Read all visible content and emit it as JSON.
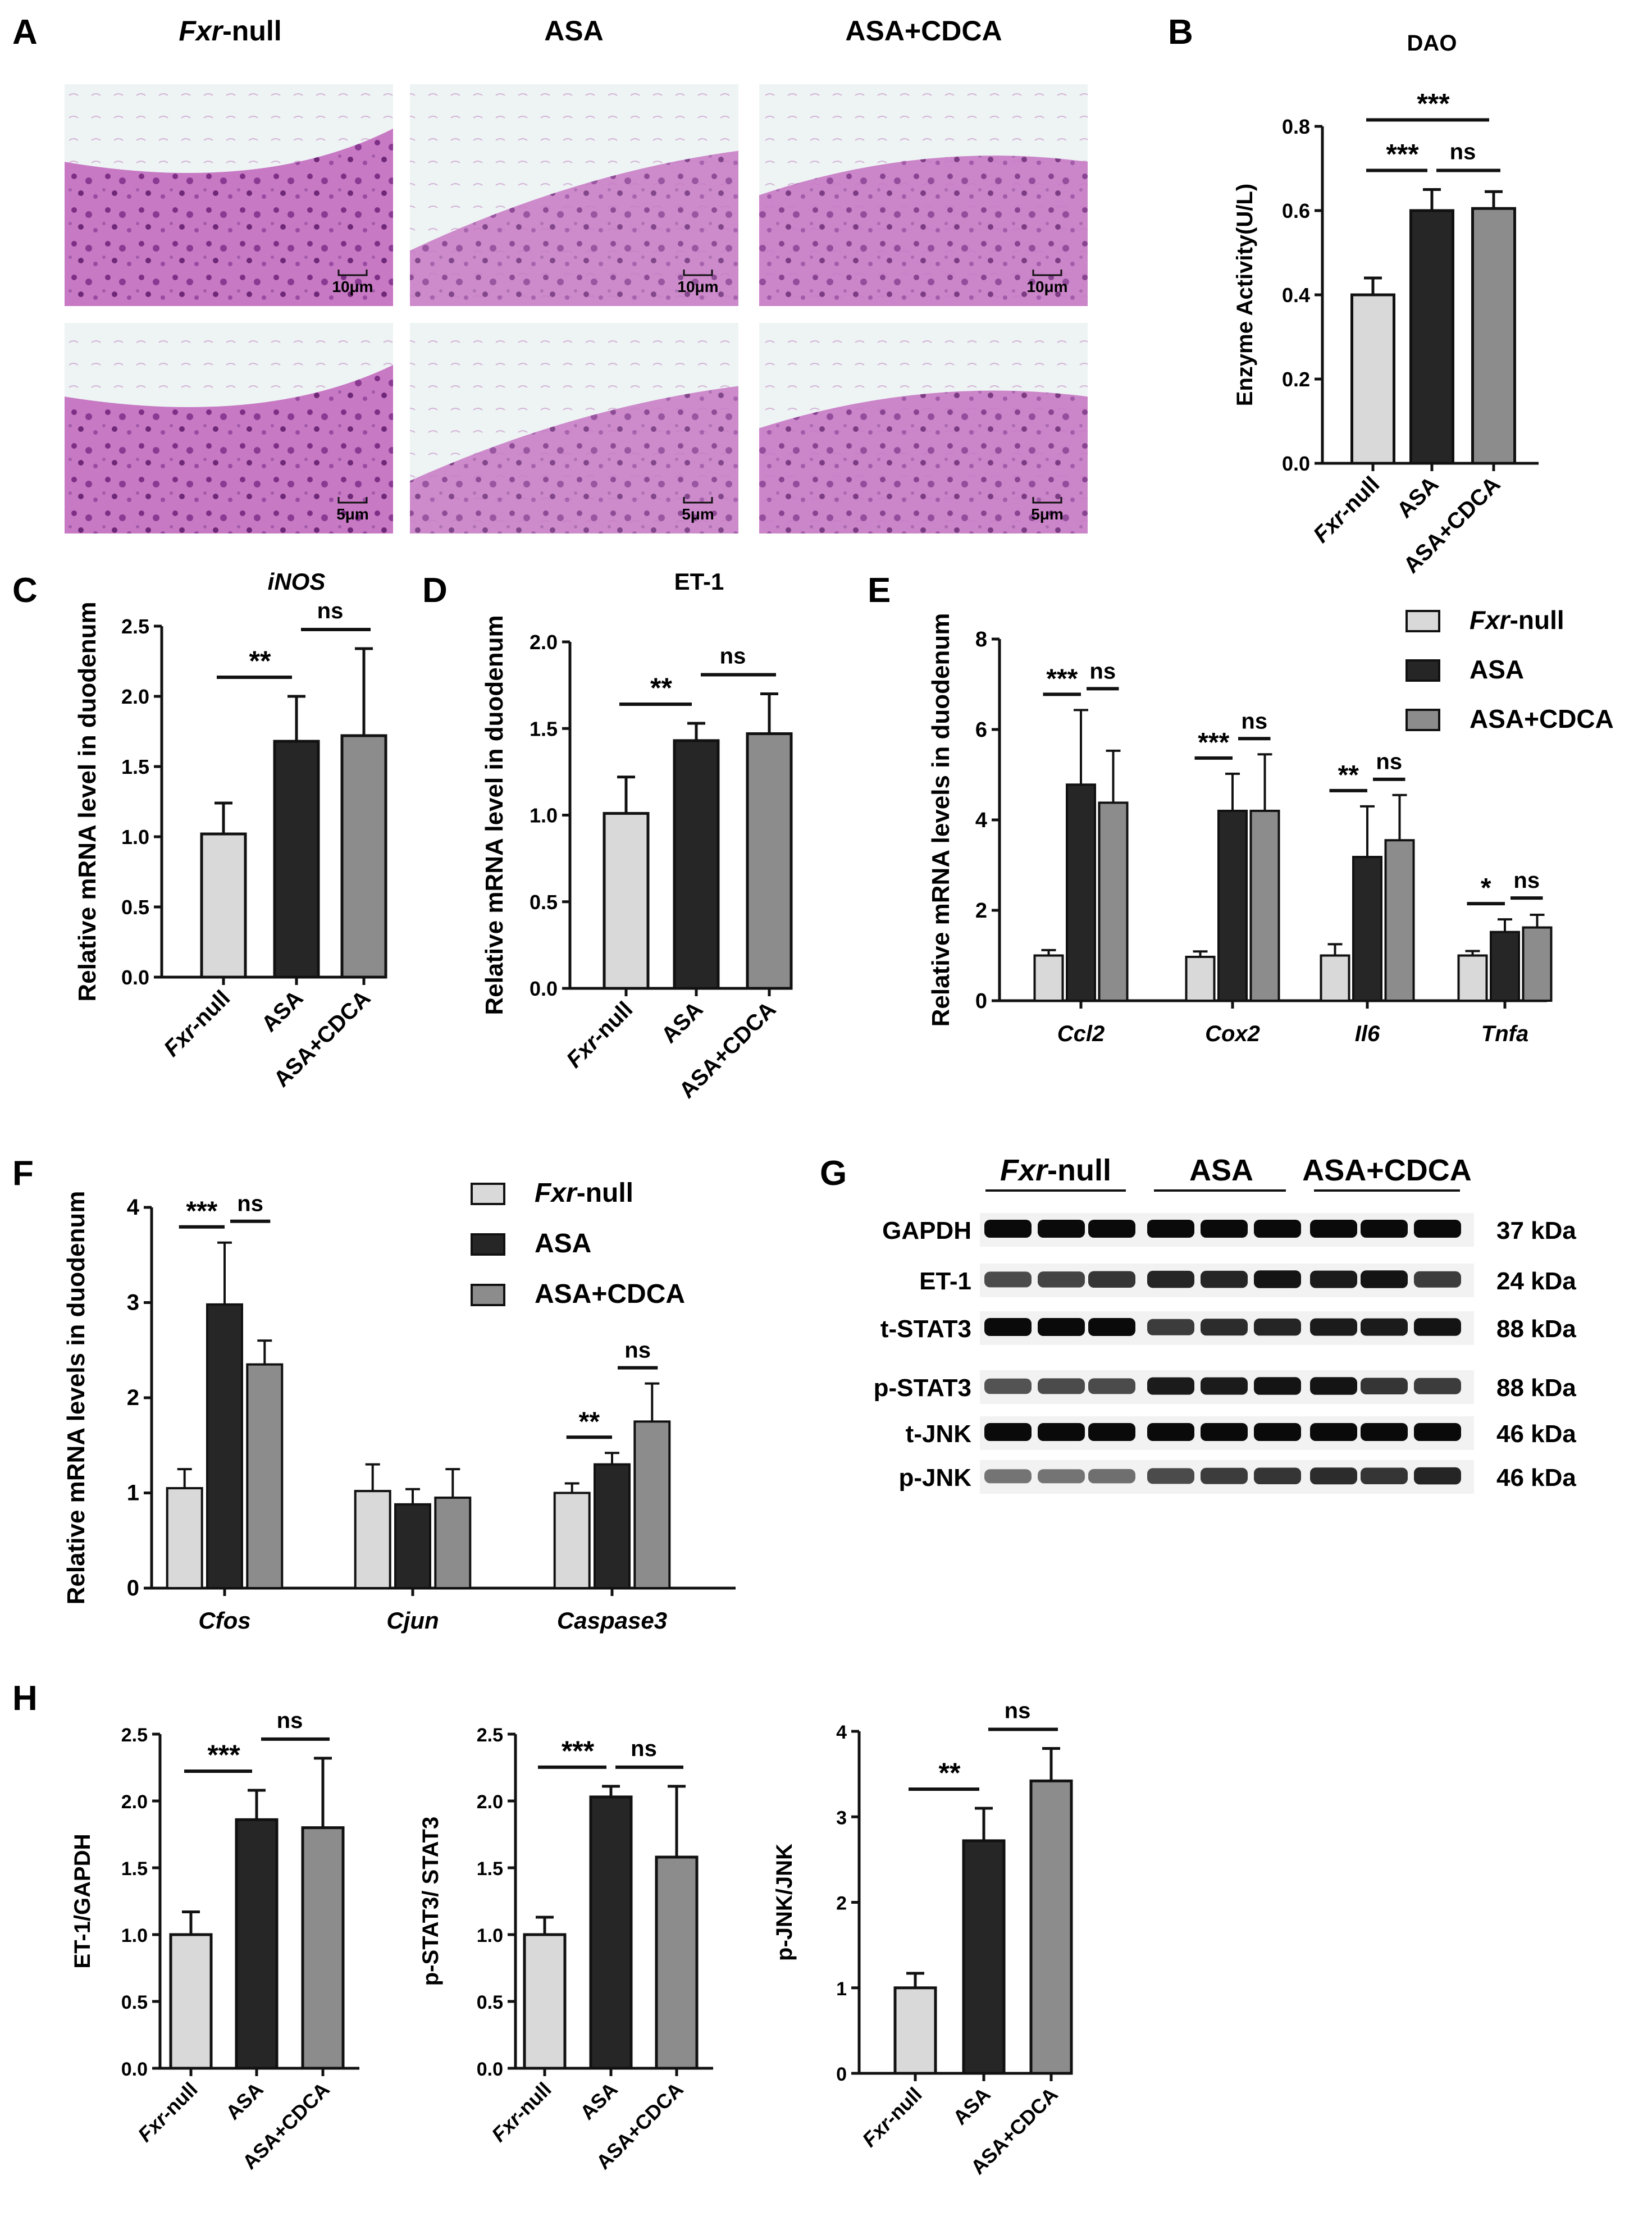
{
  "panel_labels": {
    "A": "A",
    "B": "B",
    "C": "C",
    "D": "D",
    "E": "E",
    "F": "F",
    "G": "G",
    "H": "H"
  },
  "histology": {
    "group_headers": [
      {
        "italic": "Fxr",
        "rest": "-null"
      },
      {
        "italic": "",
        "rest": "ASA"
      },
      {
        "italic": "",
        "rest": "ASA+CDCA"
      }
    ],
    "scale_bars": [
      "10μm",
      "10μm",
      "10μm",
      "5μm",
      "5μm",
      "5μm"
    ]
  },
  "colors": {
    "fxr": "#d9d9d9",
    "asa": "#262626",
    "cdca": "#8c8c8c",
    "edge": "#111111"
  },
  "groups": [
    "Fxr-null",
    "ASA",
    "ASA+CDCA"
  ],
  "legend": [
    {
      "italic": "Fxr",
      "rest": "-null"
    },
    {
      "italic": "",
      "rest": "ASA"
    },
    {
      "italic": "",
      "rest": "ASA+CDCA"
    }
  ],
  "western": {
    "group_headers": [
      {
        "italic": "Fxr",
        "rest": "-null"
      },
      {
        "italic": "",
        "rest": "ASA"
      },
      {
        "italic": "",
        "rest": "ASA+CDCA"
      }
    ],
    "rows": [
      {
        "name": "GAPDH",
        "kda": "37 kDa"
      },
      {
        "name": "ET-1",
        "kda": "24 kDa"
      },
      {
        "name": "t-STAT3",
        "kda": "88 kDa"
      },
      {
        "name": "p-STAT3",
        "kda": "88 kDa"
      },
      {
        "name": "t-JNK",
        "kda": "46 kDa"
      },
      {
        "name": "p-JNK",
        "kda": "46 kDa"
      }
    ]
  },
  "chart_data": [
    {
      "id": "B",
      "type": "bar",
      "title": "DAO",
      "title_italic": false,
      "ylabel": "Enzyme Activity(U/L)",
      "ylim": [
        0,
        0.8
      ],
      "yticks": [
        "0.0",
        "0.2",
        "0.4",
        "0.6",
        "0.8"
      ],
      "categories": [
        "Fxr-null",
        "ASA",
        "ASA+CDCA"
      ],
      "values": [
        0.4,
        0.6,
        0.605
      ],
      "errors": [
        0.04,
        0.05,
        0.04
      ],
      "annotations": [
        {
          "from": 0,
          "to": 1,
          "label": "***"
        },
        {
          "from": 1,
          "to": 2,
          "label": "ns"
        },
        {
          "from": 0,
          "to": 2,
          "label": "***"
        }
      ]
    },
    {
      "id": "C",
      "type": "bar",
      "title": "iNOS",
      "title_italic": true,
      "ylabel": "Relative mRNA level in duodenum",
      "ylim": [
        0,
        2.5
      ],
      "yticks": [
        "0.0",
        "0.5",
        "1.0",
        "1.5",
        "2.0",
        "2.5"
      ],
      "categories": [
        "Fxr-null",
        "ASA",
        "ASA+CDCA"
      ],
      "values": [
        1.02,
        1.68,
        1.72
      ],
      "errors": [
        0.22,
        0.32,
        0.62
      ],
      "annotations": [
        {
          "from": 0,
          "to": 1,
          "label": "**"
        },
        {
          "from": 1,
          "to": 2,
          "label": "ns"
        }
      ]
    },
    {
      "id": "D",
      "type": "bar",
      "title": "ET-1",
      "title_italic": false,
      "ylabel": "Relative mRNA level in duodenum",
      "ylim": [
        0,
        2.0
      ],
      "yticks": [
        "0.0",
        "0.5",
        "1.0",
        "1.5",
        "2.0"
      ],
      "categories": [
        "Fxr-null",
        "ASA",
        "ASA+CDCA"
      ],
      "values": [
        1.01,
        1.43,
        1.47
      ],
      "errors": [
        0.21,
        0.1,
        0.23
      ],
      "annotations": [
        {
          "from": 0,
          "to": 1,
          "label": "**"
        },
        {
          "from": 1,
          "to": 2,
          "label": "ns"
        }
      ]
    },
    {
      "id": "E",
      "type": "bar",
      "title": "",
      "ylabel": "Relative mRNA levels in duodenum",
      "ylim": [
        0,
        8
      ],
      "yticks": [
        "0",
        "2",
        "4",
        "6",
        "8"
      ],
      "categories": [
        "Ccl2",
        "Cox2",
        "Il6",
        "Tnfa"
      ],
      "series": [
        {
          "name": "Fxr-null",
          "values": [
            1.0,
            0.97,
            1.0,
            1.0
          ],
          "errors": [
            0.12,
            0.12,
            0.25,
            0.1
          ]
        },
        {
          "name": "ASA",
          "values": [
            4.78,
            4.2,
            3.18,
            1.52
          ],
          "errors": [
            1.65,
            0.82,
            1.12,
            0.28
          ]
        },
        {
          "name": "ASA+CDCA",
          "values": [
            4.38,
            4.2,
            3.55,
            1.62
          ],
          "errors": [
            1.15,
            1.25,
            1.0,
            0.28
          ]
        }
      ],
      "annotations": [
        {
          "cat": 0,
          "label": "***",
          "ns": "ns"
        },
        {
          "cat": 1,
          "label": "***",
          "ns": "ns"
        },
        {
          "cat": 2,
          "label": "**",
          "ns": "ns"
        },
        {
          "cat": 3,
          "label": "*",
          "ns": "ns"
        }
      ]
    },
    {
      "id": "F",
      "type": "bar",
      "title": "",
      "ylabel": "Relative mRNA levels in duodenum",
      "ylim": [
        0,
        4
      ],
      "yticks": [
        "0",
        "1",
        "2",
        "3",
        "4"
      ],
      "categories": [
        "Cfos",
        "Cjun",
        "Caspase3"
      ],
      "series": [
        {
          "name": "Fxr-null",
          "values": [
            1.05,
            1.02,
            1.0
          ],
          "errors": [
            0.2,
            0.28,
            0.1
          ]
        },
        {
          "name": "ASA",
          "values": [
            2.98,
            0.88,
            1.3
          ],
          "errors": [
            0.65,
            0.16,
            0.12
          ]
        },
        {
          "name": "ASA+CDCA",
          "values": [
            2.35,
            0.95,
            1.75
          ],
          "errors": [
            0.25,
            0.3,
            0.4
          ]
        }
      ],
      "annotations": [
        {
          "cat": 0,
          "label": "***",
          "ns": "ns"
        },
        {
          "cat": 2,
          "label": "**",
          "ns": "ns"
        }
      ]
    },
    {
      "id": "H1",
      "type": "bar",
      "title": "",
      "ylabel": "ET-1/GAPDH",
      "ylim": [
        0,
        2.5
      ],
      "yticks": [
        "0.0",
        "0.5",
        "1.0",
        "1.5",
        "2.0",
        "2.5"
      ],
      "categories": [
        "Fxr-null",
        "ASA",
        "ASA+CDCA"
      ],
      "values": [
        1.0,
        1.86,
        1.8
      ],
      "errors": [
        0.17,
        0.22,
        0.52
      ],
      "annotations": [
        {
          "from": 0,
          "to": 1,
          "label": "***"
        },
        {
          "from": 1,
          "to": 2,
          "label": "ns"
        }
      ]
    },
    {
      "id": "H2",
      "type": "bar",
      "title": "",
      "ylabel": "p-STAT3/ STAT3",
      "ylim": [
        0,
        2.5
      ],
      "yticks": [
        "0.0",
        "0.5",
        "1.0",
        "1.5",
        "2.0",
        "2.5"
      ],
      "categories": [
        "Fxr-null",
        "ASA",
        "ASA+CDCA"
      ],
      "values": [
        1.0,
        2.03,
        1.58
      ],
      "errors": [
        0.13,
        0.08,
        0.53
      ],
      "annotations": [
        {
          "from": 0,
          "to": 1,
          "label": "***"
        },
        {
          "from": 1,
          "to": 2,
          "label": "ns"
        }
      ]
    },
    {
      "id": "H3",
      "type": "bar",
      "title": "",
      "ylabel": "p-JNK/JNK",
      "ylim": [
        0,
        4
      ],
      "yticks": [
        "0",
        "1",
        "2",
        "3",
        "4"
      ],
      "categories": [
        "Fxr-null",
        "ASA",
        "ASA+CDCA"
      ],
      "values": [
        1.0,
        2.72,
        3.42
      ],
      "errors": [
        0.17,
        0.38,
        0.38
      ],
      "annotations": [
        {
          "from": 0,
          "to": 1,
          "label": "**"
        },
        {
          "from": 1,
          "to": 2,
          "label": "ns"
        }
      ]
    }
  ]
}
